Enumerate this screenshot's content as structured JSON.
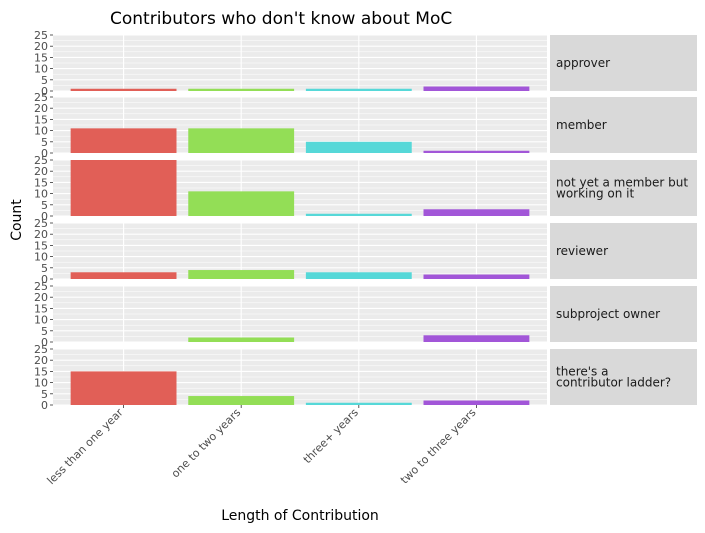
{
  "chart_data": {
    "type": "bar",
    "layout": "faceted-rows",
    "title": "Contributors who don't know about MoC",
    "xlabel": "Length of Contribution",
    "ylabel": "Count",
    "ylim": [
      0,
      25
    ],
    "yticks": [
      0,
      5,
      10,
      15,
      20,
      25
    ],
    "grid": true,
    "categories": [
      "less than one year",
      "one to two years",
      "three+ years",
      "two to three years"
    ],
    "category_colors": [
      "#e15f57",
      "#93de56",
      "#56d8d8",
      "#a256d8"
    ],
    "facets": [
      {
        "label_lines": [
          "approver"
        ],
        "values": [
          1,
          1,
          1,
          2
        ]
      },
      {
        "label_lines": [
          "member"
        ],
        "values": [
          11,
          11,
          5,
          1
        ]
      },
      {
        "label_lines": [
          "not yet a member but",
          "working on it"
        ],
        "values": [
          25,
          11,
          1,
          3
        ]
      },
      {
        "label_lines": [
          "reviewer"
        ],
        "values": [
          3,
          4,
          3,
          2
        ]
      },
      {
        "label_lines": [
          "subproject owner"
        ],
        "values": [
          0,
          2,
          0,
          3
        ]
      },
      {
        "label_lines": [
          "there's a",
          "contributor ladder?"
        ],
        "values": [
          15,
          4,
          1,
          2
        ]
      }
    ]
  },
  "colors": {
    "panel_bg": "#ebebeb",
    "grid_line": "#ffffff",
    "strip_bg": "#d9d9d9"
  }
}
